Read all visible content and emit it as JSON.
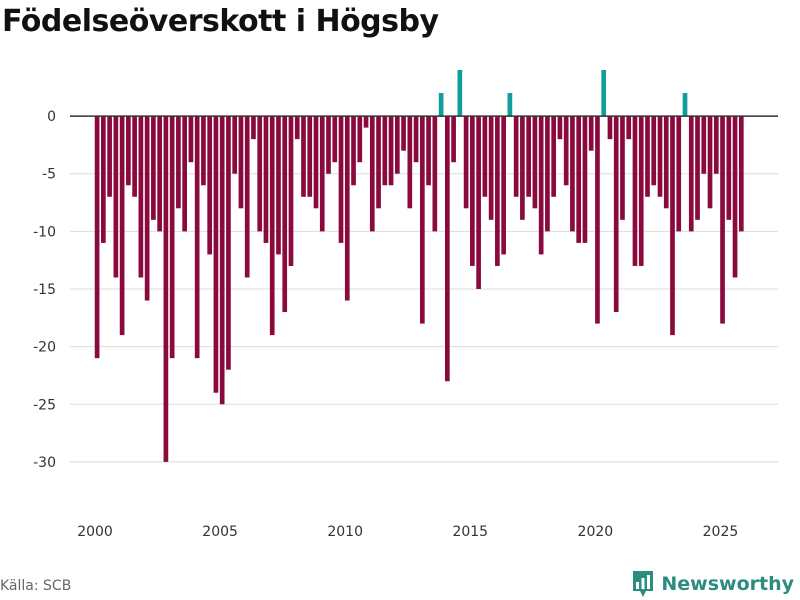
{
  "title": "Födelseöverskott i Högsby",
  "source": "Källa: SCB",
  "brand": {
    "name": "Newsworthy",
    "icon": "bar-chart-logo-icon",
    "color": "#2e8b80"
  },
  "colors": {
    "negative": "#8b0a3d",
    "positive": "#0f9e9c",
    "grid": "#dddddd",
    "axis": "#333333"
  },
  "chart_data": {
    "type": "bar",
    "title": "Födelseöverskott i Högsby",
    "xlabel": "",
    "ylabel": "",
    "grid": true,
    "legend": "none",
    "x_ticks": [
      "2000",
      "2005",
      "2010",
      "2015",
      "2020",
      "2025"
    ],
    "y_ticks": [
      "0",
      "-5",
      "-10",
      "-15",
      "-20",
      "-25",
      "-30"
    ],
    "ylim": [
      -34,
      4
    ],
    "xlim": [
      1999.0,
      2027.3
    ],
    "x_start": 2000.083,
    "x_step": 0.25,
    "values": [
      -21,
      -11,
      -7,
      -14,
      -19,
      -6,
      -7,
      -14,
      -16,
      -9,
      -10,
      -30,
      -21,
      -8,
      -10,
      -4,
      -21,
      -6,
      -12,
      -24,
      -25,
      -22,
      -5,
      -8,
      -14,
      -2,
      -10,
      -11,
      -19,
      -12,
      -17,
      -13,
      -2,
      -7,
      -7,
      -8,
      -10,
      -5,
      -4,
      -11,
      -16,
      -6,
      -4,
      -1,
      -10,
      -8,
      -6,
      -6,
      -5,
      -3,
      -8,
      -4,
      -18,
      -6,
      -10,
      2,
      -23,
      -4,
      4,
      -8,
      -13,
      -15,
      -7,
      -9,
      -13,
      -12,
      2,
      -7,
      -9,
      -7,
      -8,
      -12,
      -10,
      -7,
      -2,
      -6,
      -10,
      -11,
      -11,
      -3,
      -18,
      4,
      -2,
      -17,
      -9,
      -2,
      -13,
      -13,
      -7,
      -6,
      -7,
      -8,
      -19,
      -10,
      2,
      -10,
      -9,
      -5,
      -8,
      -5,
      -18,
      -9,
      -14,
      -10
    ]
  }
}
